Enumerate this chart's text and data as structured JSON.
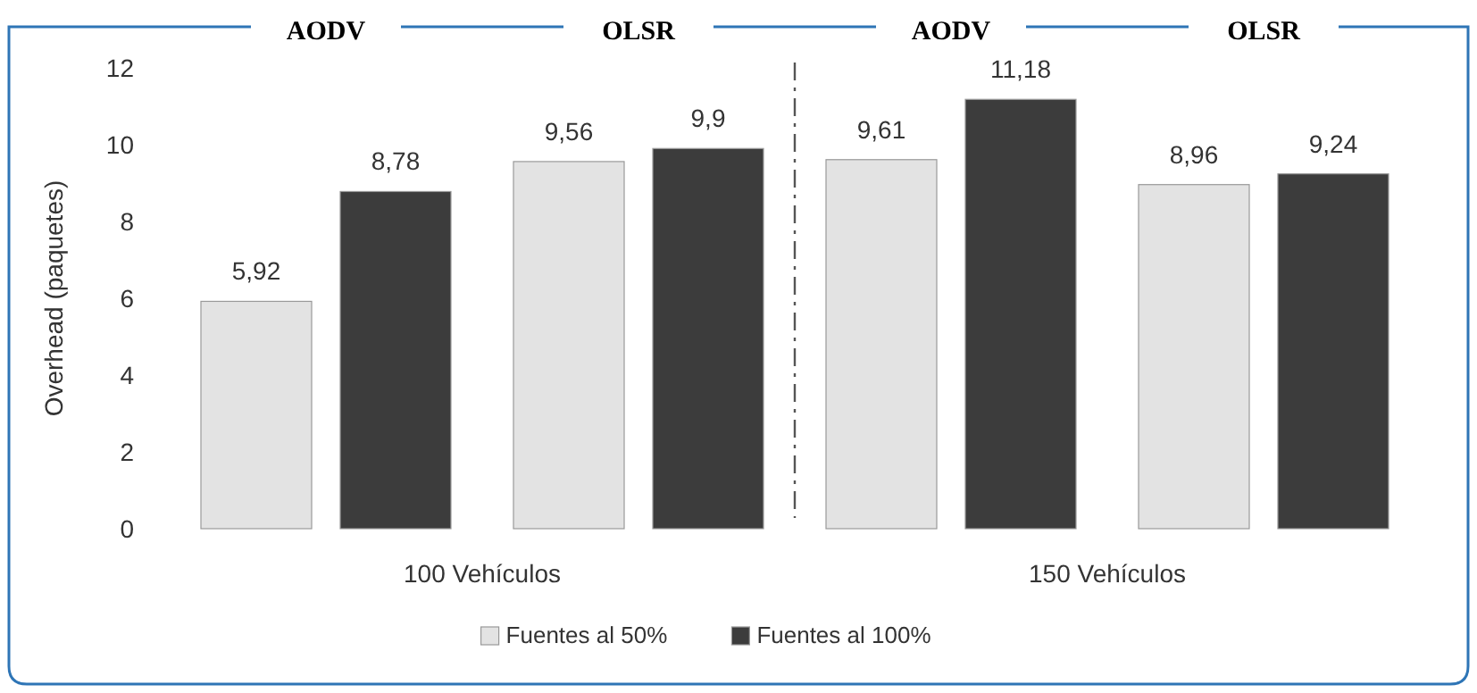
{
  "chart_data": {
    "type": "bar",
    "ylabel": "Overhead (paquetes)",
    "categories": [
      "AODV",
      "OLSR",
      "AODV",
      "OLSR"
    ],
    "series": [
      {
        "name": "Fuentes al 50%",
        "color": "#e3e3e3",
        "values": [
          5.92,
          9.56,
          9.61,
          8.96
        ],
        "value_labels": [
          "5,92",
          "9,56",
          "9,61",
          "8,96"
        ]
      },
      {
        "name": "Fuentes al 100%",
        "color": "#3c3c3c",
        "values": [
          8.78,
          9.9,
          11.18,
          9.24
        ],
        "value_labels": [
          "8,78",
          "9,9",
          "11,18",
          "9,24"
        ]
      }
    ],
    "ylim": [
      0,
      12
    ],
    "yticks": [
      0,
      2,
      4,
      6,
      8,
      10,
      12
    ],
    "grid": false,
    "legend": "bottom",
    "annotations": [
      "100 Vehículos",
      "150 Vehículos"
    ]
  }
}
